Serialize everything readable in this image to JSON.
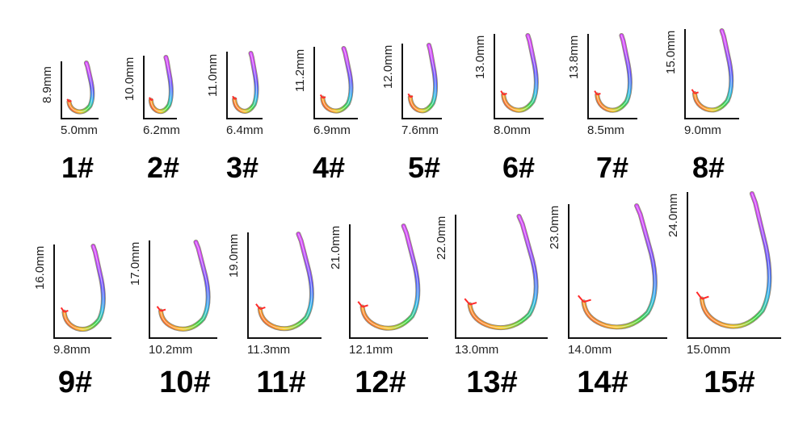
{
  "colors": {
    "axis": "#111111",
    "label": "#222222",
    "number": "#000000",
    "hook_gradient": [
      "#ff2a2a",
      "#f7c21a",
      "#2fd63b",
      "#20b5e8",
      "#5a4cff",
      "#d33cff"
    ]
  },
  "icons": {
    "hook": "fishing-hook-icon"
  },
  "sizes": [
    {
      "number": "1#",
      "height": "8.9mm",
      "width": "5.0mm"
    },
    {
      "number": "2#",
      "height": "10.0mm",
      "width": "6.2mm"
    },
    {
      "number": "3#",
      "height": "11.0mm",
      "width": "6.4mm"
    },
    {
      "number": "4#",
      "height": "11.2mm",
      "width": "6.9mm"
    },
    {
      "number": "5#",
      "height": "12.0mm",
      "width": "7.6mm"
    },
    {
      "number": "6#",
      "height": "13.0mm",
      "width": "8.0mm"
    },
    {
      "number": "7#",
      "height": "13.8mm",
      "width": "8.5mm"
    },
    {
      "number": "8#",
      "height": "15.0mm",
      "width": "9.0mm"
    },
    {
      "number": "9#",
      "height": "16.0mm",
      "width": "9.8mm"
    },
    {
      "number": "10#",
      "height": "17.0mm",
      "width": "10.2mm"
    },
    {
      "number": "11#",
      "height": "19.0mm",
      "width": "11.3mm"
    },
    {
      "number": "12#",
      "height": "21.0mm",
      "width": "12.1mm"
    },
    {
      "number": "13#",
      "height": "22.0mm",
      "width": "13.0mm"
    },
    {
      "number": "14#",
      "height": "23.0mm",
      "width": "14.0mm"
    },
    {
      "number": "15#",
      "height": "24.0mm",
      "width": "15.0mm"
    }
  ]
}
